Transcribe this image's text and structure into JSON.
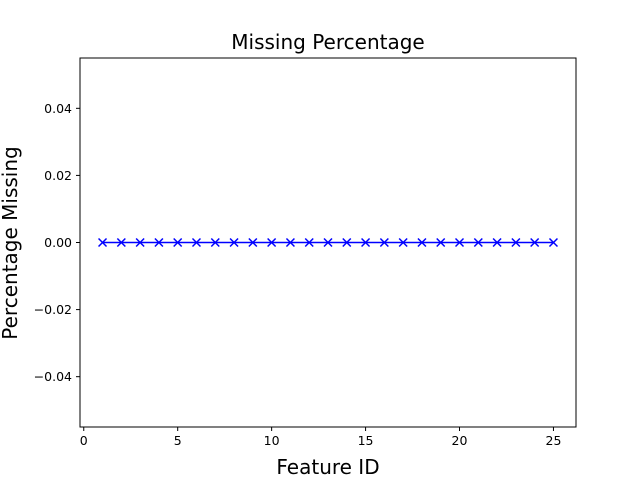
{
  "chart_data": {
    "type": "line",
    "title": "Missing Percentage",
    "xlabel": "Feature ID",
    "ylabel": "Percentage Missing",
    "xlim": [
      -0.2,
      26.2
    ],
    "ylim": [
      -0.055,
      0.055
    ],
    "xticks": [
      0,
      5,
      10,
      15,
      20,
      25
    ],
    "xtick_labels": [
      "0",
      "5",
      "10",
      "15",
      "20",
      "25"
    ],
    "yticks": [
      -0.04,
      -0.02,
      0.0,
      0.02,
      0.04
    ],
    "ytick_labels": [
      "−0.04",
      "−0.02",
      "0.00",
      "0.02",
      "0.04"
    ],
    "grid": false,
    "marker": "x",
    "color": "#0000ff",
    "series": [
      {
        "x": [
          1,
          2,
          3,
          4,
          5,
          6,
          7,
          8,
          9,
          10,
          11,
          12,
          13,
          14,
          15,
          16,
          17,
          18,
          19,
          20,
          21,
          22,
          23,
          24,
          25
        ],
        "values": [
          0,
          0,
          0,
          0,
          0,
          0,
          0,
          0,
          0,
          0,
          0,
          0,
          0,
          0,
          0,
          0,
          0,
          0,
          0,
          0,
          0,
          0,
          0,
          0,
          0
        ]
      }
    ]
  }
}
